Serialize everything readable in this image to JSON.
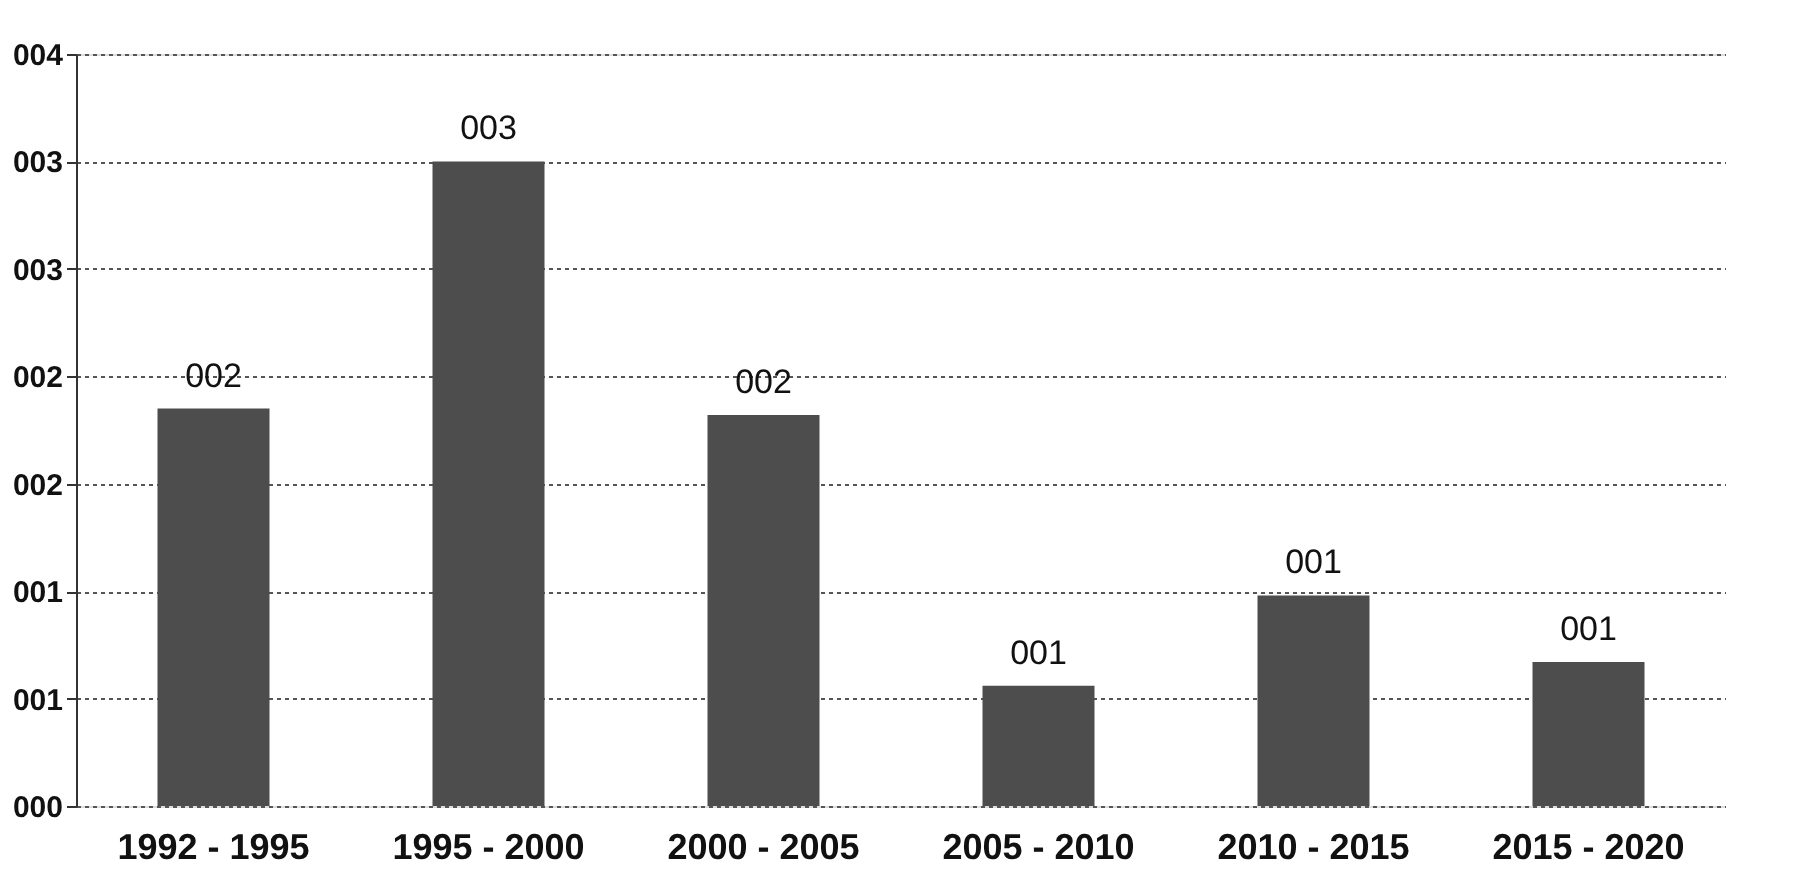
{
  "chart_data": {
    "type": "bar",
    "categories": [
      "1992 - 1995",
      "1995 - 2000",
      "2000 - 2005",
      "2005 - 2010",
      "2010 - 2015",
      "2015 - 2020"
    ],
    "values": [
      1.85,
      3.0,
      1.82,
      0.56,
      0.98,
      0.67
    ],
    "value_labels": [
      "002",
      "003",
      "002",
      "001",
      "001",
      "001"
    ],
    "color": "#4d4d4d",
    "ylim": [
      0,
      3.5
    ],
    "yticks": [
      {
        "value": 0,
        "label": "000"
      },
      {
        "value": 0.5,
        "label": "001"
      },
      {
        "value": 1,
        "label": "001"
      },
      {
        "value": 1.5,
        "label": "002"
      },
      {
        "value": 2,
        "label": "002"
      },
      {
        "value": 2.5,
        "label": "003"
      },
      {
        "value": 3,
        "label": "003"
      },
      {
        "value": 3.5,
        "label": "004"
      }
    ],
    "grid": "y"
  }
}
